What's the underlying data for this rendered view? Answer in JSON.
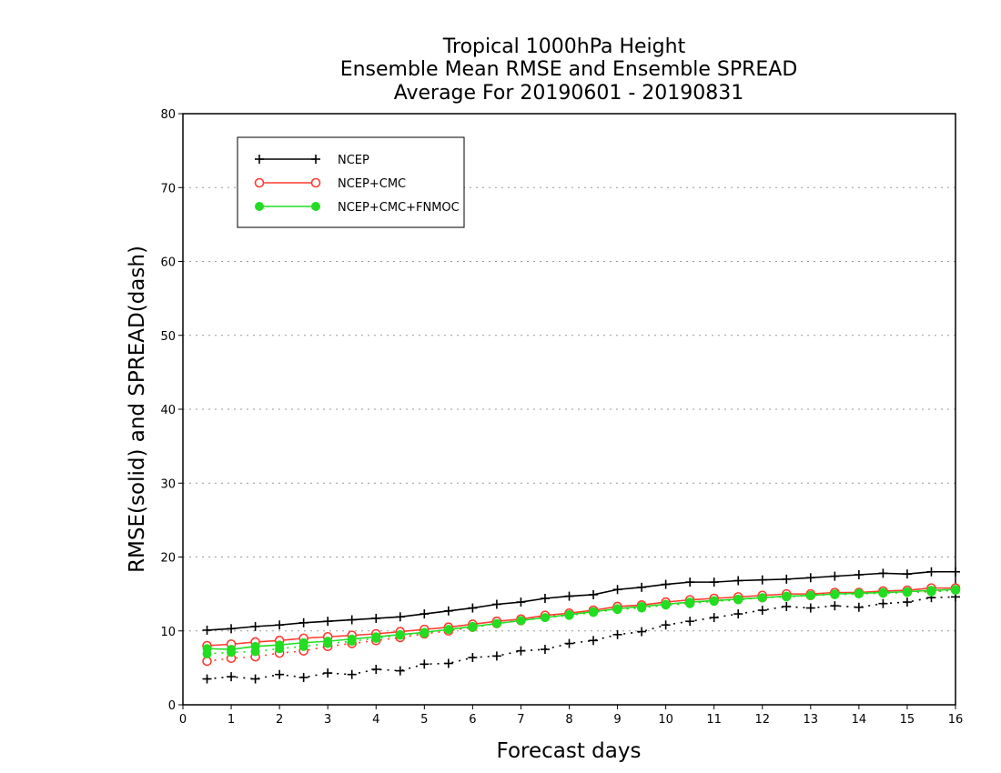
{
  "chart_data": {
    "type": "line",
    "title": [
      "Tropical 1000hPa Height",
      "Ensemble Mean RMSE and Ensemble SPREAD",
      "Average For 20190601 - 20190831"
    ],
    "xlabel": "Forecast days",
    "ylabel": "RMSE(solid) and SPREAD(dash)",
    "xlim": [
      0,
      16
    ],
    "ylim": [
      0,
      80
    ],
    "xticks": [
      "0",
      "1",
      "2",
      "3",
      "4",
      "5",
      "6",
      "7",
      "8",
      "9",
      "10",
      "11",
      "12",
      "13",
      "14",
      "15",
      "16"
    ],
    "yticks": [
      "0",
      "10",
      "20",
      "30",
      "40",
      "50",
      "60",
      "70",
      "80"
    ],
    "grid": "horizontal dotted",
    "legend_position": "top-left",
    "x": [
      0.5,
      1,
      1.5,
      2,
      2.5,
      3,
      3.5,
      4,
      4.5,
      5,
      5.5,
      6,
      6.5,
      7,
      7.5,
      8,
      8.5,
      9,
      9.5,
      10,
      10.5,
      11,
      11.5,
      12,
      12.5,
      13,
      13.5,
      14,
      14.5,
      15,
      15.5,
      16
    ],
    "series": [
      {
        "name": "NCEP",
        "metric": "RMSE",
        "style": "solid",
        "marker": "plus",
        "color": "#000000",
        "values": [
          10.1,
          10.3,
          10.6,
          10.8,
          11.1,
          11.3,
          11.5,
          11.7,
          11.9,
          12.3,
          12.7,
          13.1,
          13.6,
          13.9,
          14.4,
          14.7,
          14.9,
          15.6,
          15.9,
          16.3,
          16.6,
          16.6,
          16.8,
          16.9,
          17.0,
          17.2,
          17.4,
          17.6,
          17.8,
          17.7,
          18.0,
          18.0
        ]
      },
      {
        "name": "NCEP",
        "metric": "SPREAD",
        "style": "dash",
        "marker": "plus",
        "color": "#000000",
        "values": [
          3.5,
          3.8,
          3.5,
          4.1,
          3.7,
          4.3,
          4.1,
          4.8,
          4.6,
          5.5,
          5.6,
          6.4,
          6.6,
          7.3,
          7.5,
          8.3,
          8.7,
          9.5,
          9.9,
          10.8,
          11.3,
          11.8,
          12.3,
          12.8,
          13.3,
          13.1,
          13.4,
          13.2,
          13.7,
          13.9,
          14.5,
          14.6
        ]
      },
      {
        "name": "NCEP+CMC",
        "metric": "RMSE",
        "style": "solid",
        "marker": "open-circle",
        "color": "#ff3b30",
        "values": [
          8.0,
          8.2,
          8.5,
          8.7,
          9.0,
          9.2,
          9.4,
          9.6,
          9.9,
          10.2,
          10.5,
          10.9,
          11.3,
          11.6,
          12.1,
          12.4,
          12.8,
          13.3,
          13.5,
          13.9,
          14.2,
          14.4,
          14.6,
          14.8,
          15.0,
          15.0,
          15.2,
          15.2,
          15.4,
          15.5,
          15.8,
          15.8
        ]
      },
      {
        "name": "NCEP+CMC",
        "metric": "SPREAD",
        "style": "dash",
        "marker": "open-circle",
        "color": "#ff3b30",
        "values": [
          5.9,
          6.3,
          6.5,
          7.0,
          7.3,
          7.9,
          8.3,
          8.7,
          9.1,
          9.6,
          10.0,
          10.5,
          11.0,
          11.4,
          11.9,
          12.2,
          12.6,
          13.0,
          13.3,
          13.6,
          13.8,
          14.1,
          14.3,
          14.5,
          14.7,
          14.8,
          15.0,
          15.1,
          15.2,
          15.3,
          15.4,
          15.6
        ]
      },
      {
        "name": "NCEP+CMC+FNMOC",
        "metric": "RMSE",
        "style": "solid",
        "marker": "filled-circle",
        "color": "#22dd22",
        "values": [
          7.6,
          7.5,
          7.9,
          8.1,
          8.4,
          8.6,
          8.9,
          9.2,
          9.5,
          9.8,
          10.2,
          10.6,
          11.0,
          11.4,
          11.8,
          12.2,
          12.6,
          13.0,
          13.3,
          13.6,
          13.9,
          14.1,
          14.3,
          14.5,
          14.7,
          14.8,
          15.0,
          15.1,
          15.2,
          15.3,
          15.5,
          15.6
        ]
      },
      {
        "name": "NCEP+CMC+FNMOC",
        "metric": "SPREAD",
        "style": "dash",
        "marker": "filled-circle",
        "color": "#22dd22",
        "values": [
          6.9,
          7.1,
          7.2,
          7.6,
          7.9,
          8.3,
          8.6,
          9.0,
          9.4,
          9.7,
          10.2,
          10.5,
          11.0,
          11.4,
          11.8,
          12.1,
          12.5,
          12.9,
          13.1,
          13.5,
          13.7,
          14.0,
          14.2,
          14.5,
          14.6,
          14.8,
          14.9,
          15.0,
          15.1,
          15.2,
          15.3,
          15.5
        ]
      }
    ],
    "legend": [
      {
        "label": "NCEP",
        "color": "#000000",
        "marker": "plus"
      },
      {
        "label": "NCEP+CMC",
        "color": "#ff3b30",
        "marker": "open-circle"
      },
      {
        "label": "NCEP+CMC+FNMOC",
        "color": "#22dd22",
        "marker": "filled-circle"
      }
    ]
  }
}
